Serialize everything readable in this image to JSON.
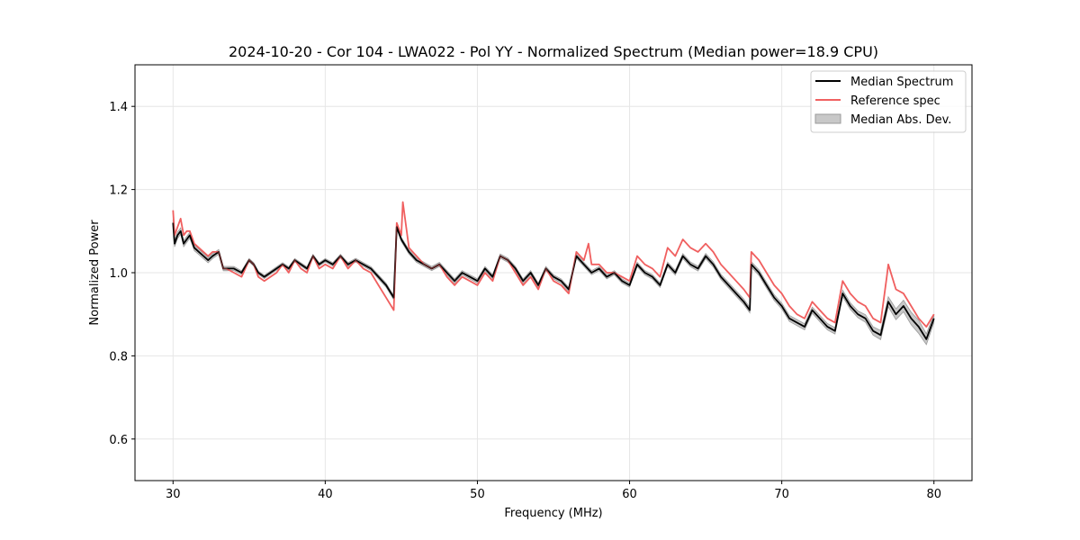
{
  "chart_data": {
    "type": "line",
    "title": "2024-10-20 - Cor 104 - LWA022 - Pol YY - Normalized Spectrum (Median power=18.9 CPU)",
    "xlabel": "Frequency (MHz)",
    "ylabel": "Normalized Power",
    "xlim": [
      27.5,
      82.5
    ],
    "ylim": [
      0.5,
      1.5
    ],
    "xticks": [
      30,
      40,
      50,
      60,
      70,
      80
    ],
    "yticks": [
      0.6,
      0.8,
      1.0,
      1.2,
      1.4
    ],
    "xtick_labels": [
      "30",
      "40",
      "50",
      "60",
      "70",
      "80"
    ],
    "ytick_labels": [
      "0.6",
      "0.8",
      "1.0",
      "1.2",
      "1.4"
    ],
    "grid": true,
    "legend_position": "top-right",
    "legend": [
      "Median Spectrum",
      "Reference spec",
      "Median Abs. Dev."
    ],
    "colors": {
      "median": "#000000",
      "reference": "#f06060",
      "mad_fill": "#c8c8c8",
      "mad_edge": "#9a9a9a",
      "grid": "#e6e6e6"
    },
    "series": [
      {
        "name": "Median Spectrum",
        "x": [
          30.0,
          30.1,
          30.3,
          30.5,
          30.7,
          30.9,
          31.1,
          31.4,
          31.7,
          32.0,
          32.3,
          32.6,
          33.0,
          33.3,
          33.5,
          34.0,
          34.5,
          35.0,
          35.3,
          35.6,
          36.0,
          36.4,
          36.8,
          37.2,
          37.6,
          38.0,
          38.4,
          38.8,
          39.2,
          39.6,
          40.0,
          40.5,
          41.0,
          41.5,
          42.0,
          42.5,
          43.0,
          43.5,
          44.0,
          44.5,
          44.7,
          45.0,
          45.5,
          46.0,
          46.5,
          47.0,
          47.5,
          48.0,
          48.5,
          49.0,
          49.5,
          50.0,
          50.5,
          51.0,
          51.5,
          52.0,
          52.5,
          53.0,
          53.5,
          54.0,
          54.5,
          55.0,
          55.5,
          56.0,
          56.5,
          57.0,
          57.5,
          58.0,
          58.5,
          59.0,
          59.5,
          60.0,
          60.5,
          61.0,
          61.5,
          62.0,
          62.5,
          63.0,
          63.5,
          64.0,
          64.5,
          65.0,
          65.5,
          66.0,
          66.5,
          67.0,
          67.5,
          67.9,
          68.0,
          68.5,
          69.0,
          69.5,
          70.0,
          70.5,
          71.0,
          71.5,
          72.0,
          72.5,
          73.0,
          73.5,
          74.0,
          74.5,
          75.0,
          75.5,
          76.0,
          76.5,
          77.0,
          77.5,
          78.0,
          78.5,
          79.0,
          79.5,
          80.0
        ],
        "values": [
          1.12,
          1.07,
          1.09,
          1.1,
          1.07,
          1.08,
          1.09,
          1.06,
          1.05,
          1.04,
          1.03,
          1.04,
          1.05,
          1.01,
          1.01,
          1.01,
          1.0,
          1.03,
          1.02,
          1.0,
          0.99,
          1.0,
          1.01,
          1.02,
          1.01,
          1.03,
          1.02,
          1.01,
          1.04,
          1.02,
          1.03,
          1.02,
          1.04,
          1.02,
          1.03,
          1.02,
          1.01,
          0.99,
          0.97,
          0.94,
          1.11,
          1.08,
          1.05,
          1.03,
          1.02,
          1.01,
          1.02,
          1.0,
          0.98,
          1.0,
          0.99,
          0.98,
          1.01,
          0.99,
          1.04,
          1.03,
          1.01,
          0.98,
          1.0,
          0.97,
          1.01,
          0.99,
          0.98,
          0.96,
          1.04,
          1.02,
          1.0,
          1.01,
          0.99,
          1.0,
          0.98,
          0.97,
          1.02,
          1.0,
          0.99,
          0.97,
          1.02,
          1.0,
          1.04,
          1.02,
          1.01,
          1.04,
          1.02,
          0.99,
          0.97,
          0.95,
          0.93,
          0.91,
          1.02,
          1.0,
          0.97,
          0.94,
          0.92,
          0.89,
          0.88,
          0.87,
          0.91,
          0.89,
          0.87,
          0.86,
          0.95,
          0.92,
          0.9,
          0.89,
          0.86,
          0.85,
          0.93,
          0.9,
          0.92,
          0.89,
          0.87,
          0.84,
          0.89
        ]
      },
      {
        "name": "Reference spec",
        "x": [
          30.0,
          30.1,
          30.3,
          30.5,
          30.7,
          30.9,
          31.1,
          31.4,
          31.7,
          32.0,
          32.3,
          32.6,
          33.0,
          33.3,
          33.5,
          34.0,
          34.5,
          35.0,
          35.3,
          35.6,
          36.0,
          36.4,
          36.8,
          37.2,
          37.6,
          38.0,
          38.4,
          38.8,
          39.2,
          39.6,
          40.0,
          40.5,
          41.0,
          41.5,
          42.0,
          42.5,
          43.0,
          43.5,
          44.0,
          44.5,
          44.7,
          45.0,
          45.1,
          45.5,
          46.0,
          46.5,
          47.0,
          47.5,
          48.0,
          48.5,
          49.0,
          49.5,
          50.0,
          50.5,
          51.0,
          51.5,
          52.0,
          52.5,
          53.0,
          53.5,
          54.0,
          54.5,
          55.0,
          55.5,
          56.0,
          56.5,
          57.0,
          57.3,
          57.5,
          58.0,
          58.5,
          59.0,
          59.5,
          60.0,
          60.5,
          61.0,
          61.5,
          62.0,
          62.5,
          63.0,
          63.5,
          64.0,
          64.5,
          65.0,
          65.5,
          66.0,
          66.5,
          67.0,
          67.5,
          67.9,
          68.0,
          68.5,
          69.0,
          69.5,
          70.0,
          70.5,
          71.0,
          71.5,
          72.0,
          72.5,
          73.0,
          73.5,
          74.0,
          74.5,
          75.0,
          75.5,
          76.0,
          76.5,
          76.9,
          77.0,
          77.5,
          78.0,
          78.5,
          79.0,
          79.5,
          80.0
        ],
        "values": [
          1.15,
          1.09,
          1.11,
          1.13,
          1.09,
          1.1,
          1.1,
          1.07,
          1.06,
          1.05,
          1.04,
          1.05,
          1.05,
          1.01,
          1.01,
          1.0,
          0.99,
          1.03,
          1.02,
          0.99,
          0.98,
          0.99,
          1.0,
          1.02,
          1.0,
          1.03,
          1.01,
          1.0,
          1.04,
          1.01,
          1.02,
          1.01,
          1.04,
          1.01,
          1.03,
          1.01,
          1.0,
          0.97,
          0.94,
          0.91,
          1.12,
          1.09,
          1.17,
          1.06,
          1.04,
          1.02,
          1.01,
          1.02,
          0.99,
          0.97,
          0.99,
          0.98,
          0.97,
          1.0,
          0.98,
          1.04,
          1.03,
          1.0,
          0.97,
          0.99,
          0.96,
          1.01,
          0.98,
          0.97,
          0.95,
          1.05,
          1.03,
          1.07,
          1.02,
          1.02,
          1.0,
          1.0,
          0.99,
          0.98,
          1.04,
          1.02,
          1.01,
          0.99,
          1.06,
          1.04,
          1.08,
          1.06,
          1.05,
          1.07,
          1.05,
          1.02,
          1.0,
          0.98,
          0.96,
          0.94,
          1.05,
          1.03,
          1.0,
          0.97,
          0.95,
          0.92,
          0.9,
          0.89,
          0.93,
          0.91,
          0.89,
          0.88,
          0.98,
          0.95,
          0.93,
          0.92,
          0.89,
          0.88,
          0.99,
          1.02,
          0.96,
          0.95,
          0.92,
          0.89,
          0.87,
          0.9
        ]
      },
      {
        "name": "Median Abs. Dev.",
        "x": [
          30.0,
          35.0,
          40.0,
          45.0,
          50.0,
          55.0,
          60.0,
          65.0,
          70.0,
          75.0,
          77.0,
          79.0,
          80.0
        ],
        "values": [
          0.008,
          0.004,
          0.004,
          0.005,
          0.005,
          0.005,
          0.005,
          0.006,
          0.007,
          0.008,
          0.012,
          0.016,
          0.01
        ]
      }
    ]
  }
}
